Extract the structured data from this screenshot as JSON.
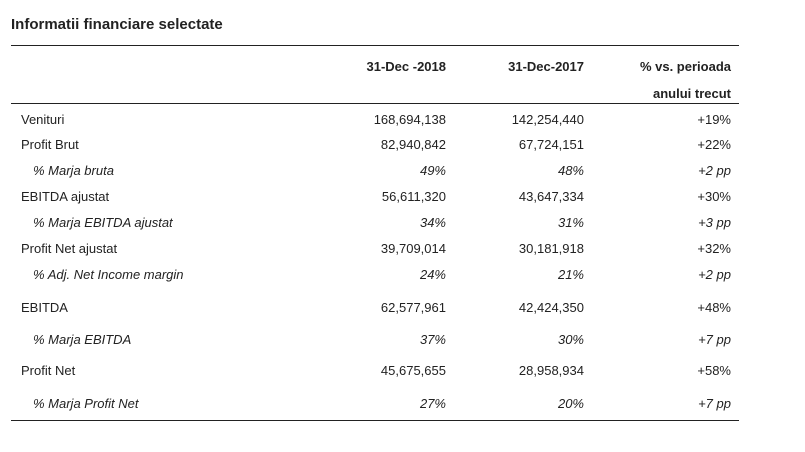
{
  "title": "Informatii financiare selectate",
  "columns": {
    "col1": "31-Dec -2018",
    "col2": "31-Dec-2017",
    "col3_line1": "% vs. perioada",
    "col3_line2": "anului trecut"
  },
  "rows": [
    {
      "label": "Venituri",
      "v2018": "168,694,138",
      "v2017": "142,254,440",
      "change": "+19%",
      "sub": false
    },
    {
      "label": "Profit Brut",
      "v2018": "82,940,842",
      "v2017": "67,724,151",
      "change": "+22%",
      "sub": false
    },
    {
      "label": "% Marja bruta",
      "v2018": "49%",
      "v2017": "48%",
      "change": "+2 pp",
      "sub": true
    },
    {
      "label": "EBITDA ajustat",
      "v2018": "56,611,320",
      "v2017": "43,647,334",
      "change": "+30%",
      "sub": false
    },
    {
      "label": "% Marja EBITDA ajustat",
      "v2018": "34%",
      "v2017": "31%",
      "change": "+3 pp",
      "sub": true
    },
    {
      "label": "Profit Net ajustat",
      "v2018": "39,709,014",
      "v2017": "30,181,918",
      "change": "+32%",
      "sub": false
    },
    {
      "label": "% Adj. Net Income margin",
      "v2018": "24%",
      "v2017": "21%",
      "change": "+2 pp",
      "sub": true
    },
    {
      "label": "EBITDA",
      "v2018": "62,577,961",
      "v2017": "42,424,350",
      "change": "+48%",
      "sub": false
    },
    {
      "label": "% Marja EBITDA",
      "v2018": "37%",
      "v2017": "30%",
      "change": "+7 pp",
      "sub": true
    },
    {
      "label": "Profit Net",
      "v2018": "45,675,655",
      "v2017": "28,958,934",
      "change": "+58%",
      "sub": false
    },
    {
      "label": "% Marja Profit Net",
      "v2018": "27%",
      "v2017": "20%",
      "change": "+7 pp",
      "sub": true
    }
  ]
}
